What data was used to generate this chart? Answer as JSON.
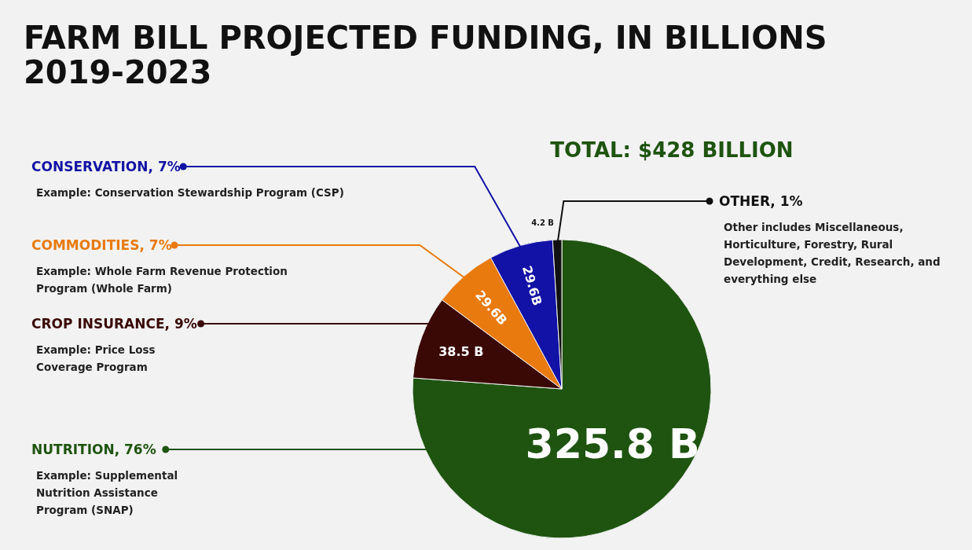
{
  "chart_data": {
    "type": "pie",
    "title": "FARM BILL PROJECTED FUNDING, IN BILLIONS",
    "subtitle": "2019-2023",
    "categories": [
      "NUTRITION, 76%",
      "CROP INSURANCE, 9%",
      "COMMODITIES, 7%",
      "CONSERVATION, 7%",
      "OTHER, 1%"
    ],
    "values": [
      325.8,
      38.5,
      29.6,
      29.6,
      4.2
    ],
    "colors": [
      "#1e5410",
      "#3a0906",
      "#e87a0e",
      "#1212a6",
      "#111111"
    ],
    "legend": "left",
    "value_labels": [
      "325.8 B",
      "38.5 B",
      "29.6B",
      "29.6B",
      "4.2 B"
    ],
    "annotations": [
      "Example: Supplemental Nutrition Assistance Program (SNAP)",
      "Example: Price Loss Coverage Program",
      "Example: Whole Farm Revenue Protection Program (Whole Farm)",
      "Example: Conservation Stewardship Program (CSP)",
      "Other includes Miscellaneous, Horticulture, Forestry, Rural Development, Credit, Research, and everything else",
      "TOTAL: $428 BILLION"
    ]
  }
}
